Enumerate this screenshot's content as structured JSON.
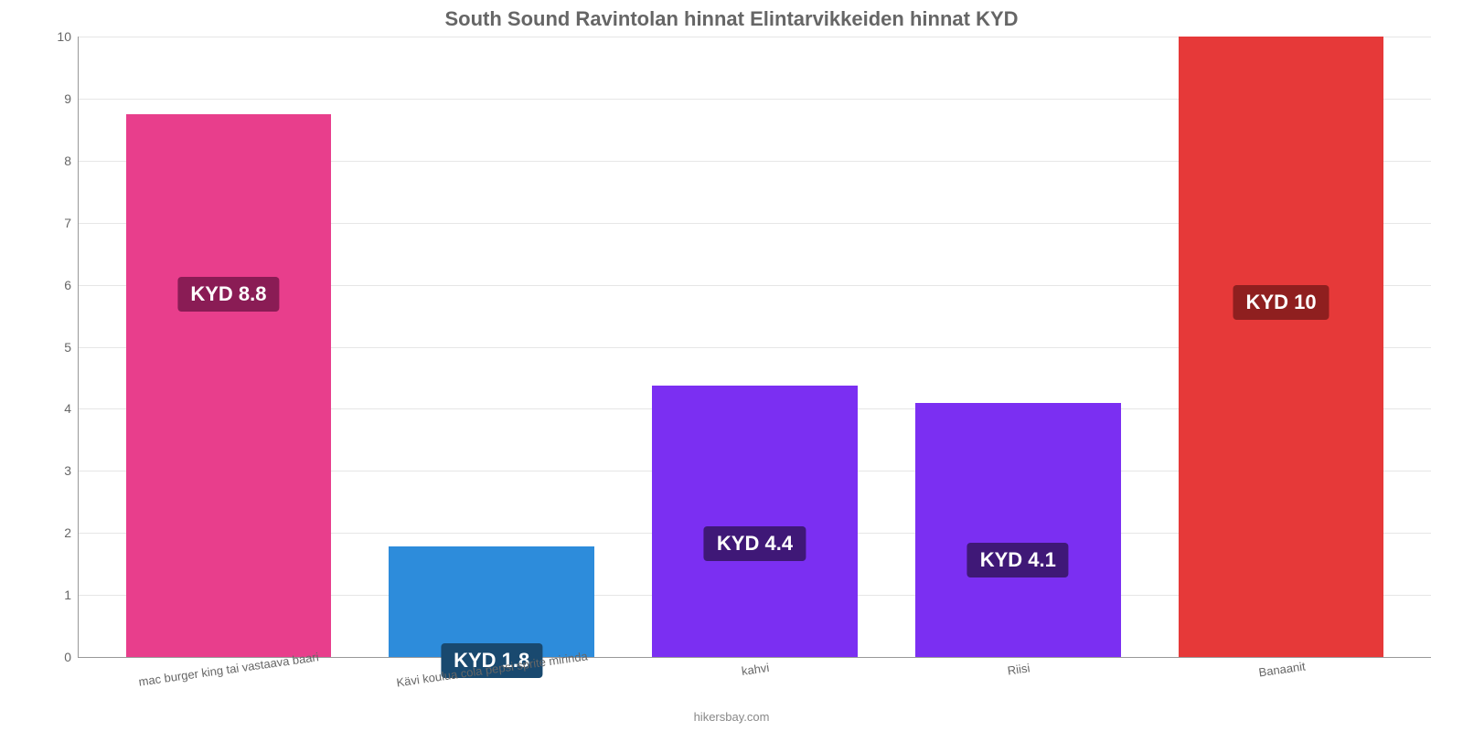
{
  "chart": {
    "type": "bar",
    "title": "South Sound Ravintolan hinnat Elintarvikkeiden hinnat KYD",
    "title_fontsize": 22,
    "title_color": "#666666",
    "background_color": "#ffffff",
    "grid_color": "#e6e6e6",
    "axis_color": "#999999",
    "label_color": "#666666",
    "ylim": [
      0,
      10
    ],
    "ytick_step": 1,
    "yticks": [
      "0",
      "1",
      "2",
      "3",
      "4",
      "5",
      "6",
      "7",
      "8",
      "9",
      "10"
    ],
    "bar_width_pct": 78,
    "x_label_rotate": -8,
    "categories": [
      "mac burger king tai vastaava baari",
      "Kävi koulua cola pepsi sprite mirinda",
      "kahvi",
      "Riisi",
      "Banaanit"
    ],
    "values": [
      8.75,
      1.78,
      4.38,
      4.1,
      10
    ],
    "value_labels": [
      "KYD 8.8",
      "KYD 1.8",
      "KYD 4.4",
      "KYD 4.1",
      "KYD 10"
    ],
    "bar_colors": [
      "#e83e8c",
      "#2d8cdb",
      "#7b2ff2",
      "#7b2ff2",
      "#e63939"
    ],
    "label_bg_colors": [
      "#8a1c55",
      "#19496f",
      "#3f1877",
      "#3f1877",
      "#8f1f1f"
    ],
    "label_fontsize": 22,
    "label_positions_pct": [
      30,
      88,
      52,
      55,
      40
    ],
    "attribution": "hikersbay.com"
  }
}
